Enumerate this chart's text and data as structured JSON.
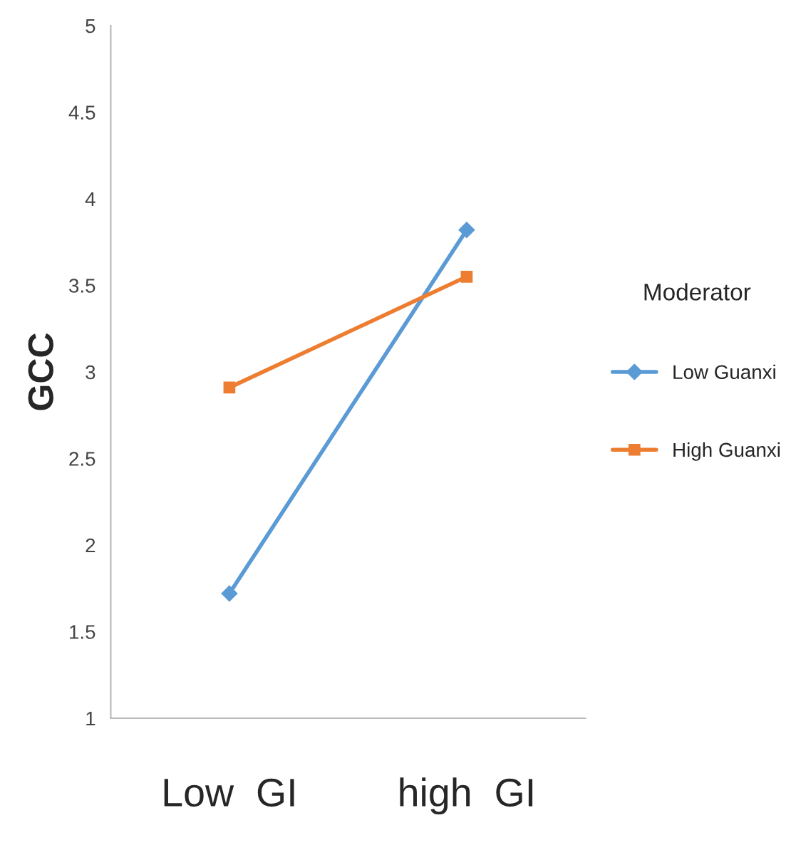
{
  "chart_data": {
    "type": "line",
    "ylabel": "GCC",
    "legend_title": "Moderator",
    "categories": [
      "Low  GI",
      "high  GI"
    ],
    "series": [
      {
        "name": "Low Guanxi",
        "color": "#5b9bd5",
        "values": [
          1.72,
          3.82
        ],
        "marker": "diamond"
      },
      {
        "name": "High Guanxi",
        "color": "#ed7d31",
        "values": [
          2.91,
          3.55
        ],
        "marker": "square"
      }
    ],
    "ylim": [
      1,
      5
    ],
    "yticks": [
      1,
      1.5,
      2,
      2.5,
      3,
      3.5,
      4,
      4.5,
      5
    ],
    "grid": false,
    "legend": "right"
  }
}
